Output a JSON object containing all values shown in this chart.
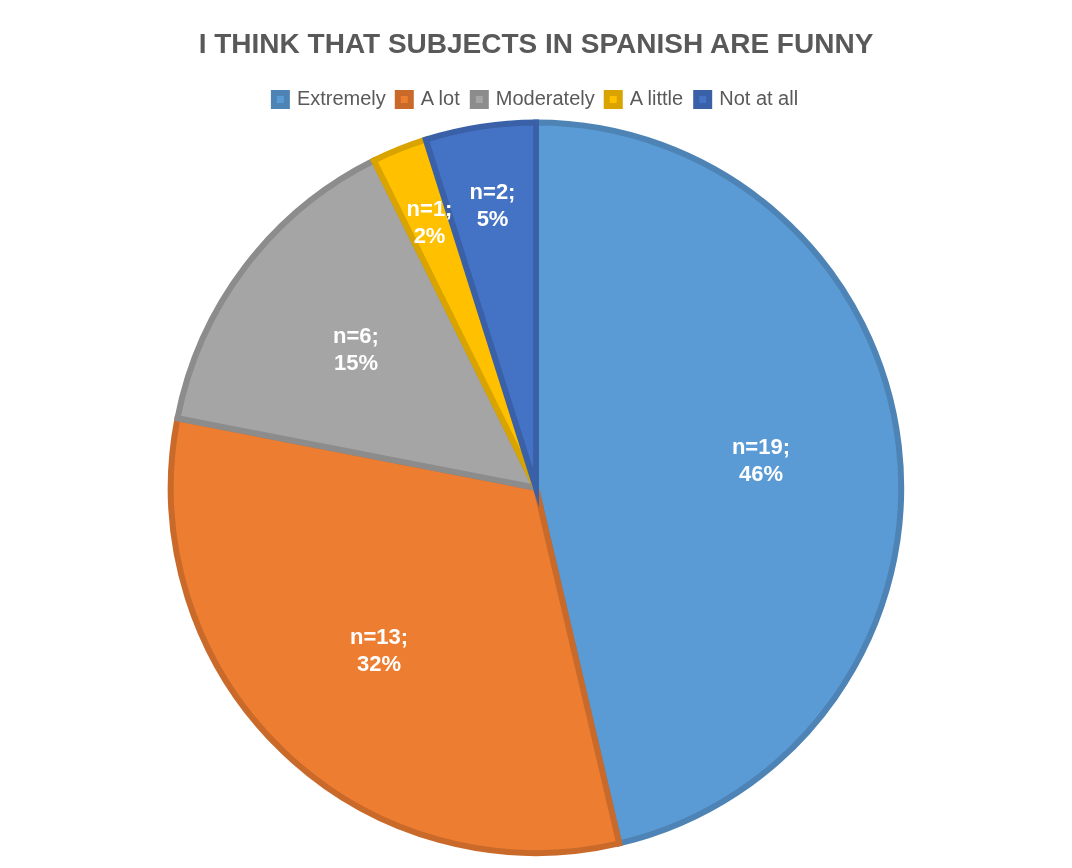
{
  "chart_data": {
    "type": "pie",
    "title": "I THINK THAT SUBJECTS IN SPANISH ARE FUNNY",
    "categories": [
      "Extremely",
      "A lot",
      "Moderately",
      "A little",
      "Not at all"
    ],
    "values": [
      19,
      13,
      6,
      1,
      2
    ],
    "colors": [
      "#5b9bd5",
      "#ed7d31",
      "#a5a5a5",
      "#ffc000",
      "#4472c4"
    ],
    "value_labels": [
      "n=19; 46%",
      "n=13; 32%",
      "n=6; 15%",
      "n=1; 2%",
      "n=2; 5%"
    ],
    "legend": "top"
  }
}
